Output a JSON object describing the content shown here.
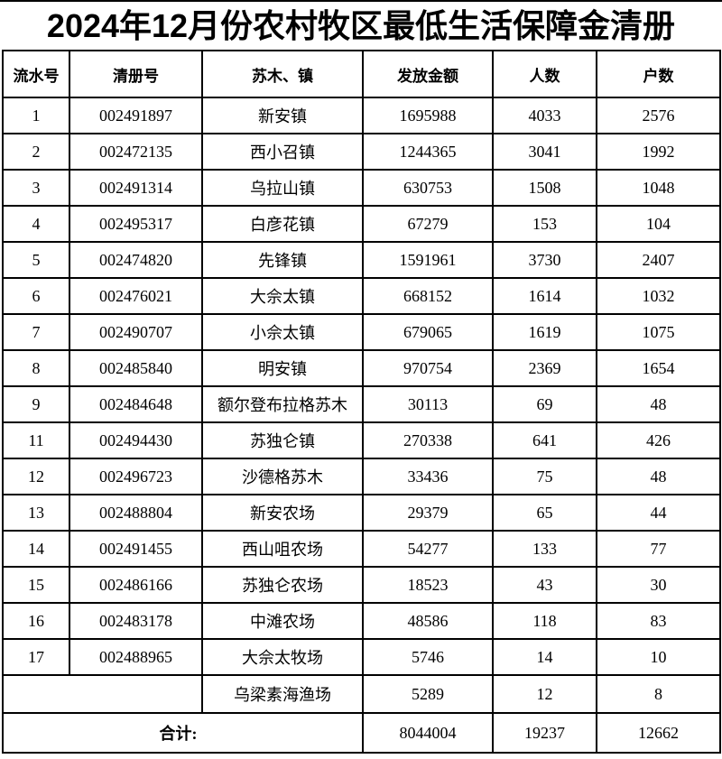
{
  "title": "2024年12月份农村牧区最低生活保障金清册",
  "colors": {
    "background": "#ffffff",
    "text": "#000000",
    "border": "#000000"
  },
  "table": {
    "headers": {
      "serial": "流水号",
      "register": "清册号",
      "town": "苏木、镇",
      "amount": "发放金额",
      "people": "人数",
      "households": "户数"
    },
    "rows": [
      {
        "serial": "1",
        "register": "002491897",
        "name": "新安镇",
        "amount": "1695988",
        "people": "4033",
        "households": "2576"
      },
      {
        "serial": "2",
        "register": "002472135",
        "name": "西小召镇",
        "amount": "1244365",
        "people": "3041",
        "households": "1992"
      },
      {
        "serial": "3",
        "register": "002491314",
        "name": "乌拉山镇",
        "amount": "630753",
        "people": "1508",
        "households": "1048"
      },
      {
        "serial": "4",
        "register": "002495317",
        "name": "白彦花镇",
        "amount": "67279",
        "people": "153",
        "households": "104"
      },
      {
        "serial": "5",
        "register": "002474820",
        "name": "先锋镇",
        "amount": "1591961",
        "people": "3730",
        "households": "2407"
      },
      {
        "serial": "6",
        "register": "002476021",
        "name": "大佘太镇",
        "amount": "668152",
        "people": "1614",
        "households": "1032"
      },
      {
        "serial": "7",
        "register": "002490707",
        "name": "小佘太镇",
        "amount": "679065",
        "people": "1619",
        "households": "1075"
      },
      {
        "serial": "8",
        "register": "002485840",
        "name": "明安镇",
        "amount": "970754",
        "people": "2369",
        "households": "1654"
      },
      {
        "serial": "9",
        "register": "002484648",
        "name": "额尔登布拉格苏木",
        "amount": "30113",
        "people": "69",
        "households": "48"
      },
      {
        "serial": "11",
        "register": "002494430",
        "name": "苏独仑镇",
        "amount": "270338",
        "people": "641",
        "households": "426"
      },
      {
        "serial": "12",
        "register": "002496723",
        "name": "沙德格苏木",
        "amount": "33436",
        "people": "75",
        "households": "48"
      },
      {
        "serial": "13",
        "register": "002488804",
        "name": "新安农场",
        "amount": "29379",
        "people": "65",
        "households": "44"
      },
      {
        "serial": "14",
        "register": "002491455",
        "name": "西山咀农场",
        "amount": "54277",
        "people": "133",
        "households": "77"
      },
      {
        "serial": "15",
        "register": "002486166",
        "name": "苏独仑农场",
        "amount": "18523",
        "people": "43",
        "households": "30"
      },
      {
        "serial": "16",
        "register": "002483178",
        "name": "中滩农场",
        "amount": "48586",
        "people": "118",
        "households": "83"
      },
      {
        "serial": "17",
        "register": "002488965",
        "name": "大佘太牧场",
        "amount": "5746",
        "people": "14",
        "households": "10"
      }
    ],
    "fishery_row": {
      "name": "乌梁素海渔场",
      "amount": "5289",
      "people": "12",
      "households": "8"
    },
    "total_row": {
      "label": "合计:",
      "amount": "8044004",
      "people": "19237",
      "households": "12662"
    }
  }
}
